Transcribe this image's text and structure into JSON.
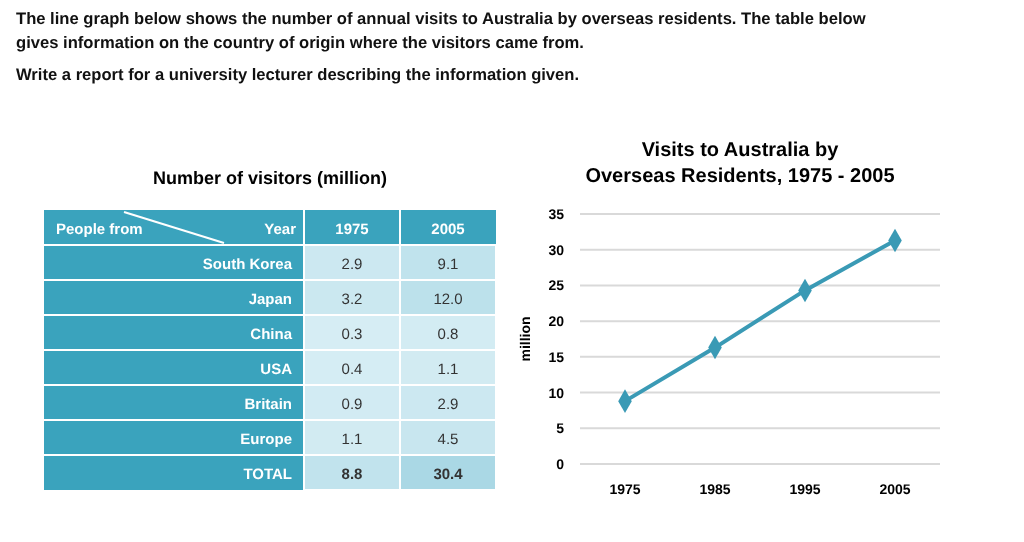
{
  "chart_data": [
    {
      "type": "heatmap",
      "title": "Number of visitors (million)",
      "xlabel": "Year",
      "ylabel": "People from",
      "annotations": [
        "The line graph below shows the number of annual visits to Australia by overseas residents. The table below gives information on the country of origin where the visitors came from.",
        "Write a report for a university lecturer describing the information given."
      ],
      "categories": [
        "1975",
        "2005"
      ],
      "y_categories": [
        "South Korea",
        "Japan",
        "China",
        "USA",
        "Britain",
        "Europe",
        "TOTAL"
      ],
      "cells": [
        [
          2.9,
          9.1
        ],
        [
          3.2,
          12.0
        ],
        [
          0.3,
          0.8
        ],
        [
          0.4,
          1.1
        ],
        [
          0.9,
          2.9
        ],
        [
          1.1,
          4.5
        ],
        [
          8.8,
          30.4
        ]
      ],
      "data_labels": true,
      "cell_labels": [
        [
          "2.9",
          "9.1"
        ],
        [
          "3.2",
          "12.0"
        ],
        [
          "0.3",
          "0.8"
        ],
        [
          "0.4",
          "1.1"
        ],
        [
          "0.9",
          "2.9"
        ],
        [
          "1.1",
          "4.5"
        ],
        [
          "8.8",
          "30.4"
        ]
      ]
    },
    {
      "type": "line",
      "title": "Visits to Australia by Overseas Residents, 1975 - 2005",
      "ylabel": "million",
      "categories": [
        "1975",
        "1985",
        "1995",
        "2005"
      ],
      "series": [
        {
          "color": "#3a9ab5",
          "values": [
            8.8,
            16.3,
            24.3,
            31.3
          ]
        }
      ],
      "ylim": [
        0,
        35
      ],
      "yticks": [
        0,
        5,
        10,
        15,
        20,
        25,
        30,
        35
      ],
      "grid": "y",
      "marker": "diamond",
      "line_style": "solid"
    }
  ]
}
